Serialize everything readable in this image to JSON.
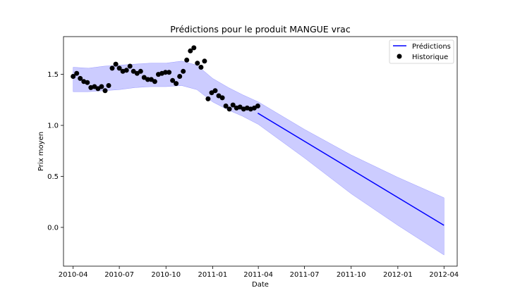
{
  "chart_data": {
    "type": "line",
    "title": "Prédictions pour le produit MANGUE vrac",
    "xlabel": "Date",
    "ylabel": "Prix moyen",
    "xlim": [
      "2010-03-13",
      "2012-04-27"
    ],
    "ylim": [
      -0.38,
      1.87
    ],
    "x_ticks": [
      {
        "date": "2010-04-01",
        "label": "2010-04"
      },
      {
        "date": "2010-07-01",
        "label": "2010-07"
      },
      {
        "date": "2010-10-01",
        "label": "2010-10"
      },
      {
        "date": "2011-01-01",
        "label": "2011-01"
      },
      {
        "date": "2011-04-01",
        "label": "2011-04"
      },
      {
        "date": "2011-07-01",
        "label": "2011-07"
      },
      {
        "date": "2011-10-01",
        "label": "2011-10"
      },
      {
        "date": "2012-01-01",
        "label": "2012-01"
      },
      {
        "date": "2012-04-01",
        "label": "2012-04"
      }
    ],
    "y_ticks": [
      {
        "value": 0.0,
        "label": "0.0"
      },
      {
        "value": 0.5,
        "label": "0.5"
      },
      {
        "value": 1.0,
        "label": "1.0"
      },
      {
        "value": 1.5,
        "label": "1.5"
      }
    ],
    "grid": false,
    "legend_position": "top-right",
    "colors": {
      "prediction": "#0000ff",
      "band": "#ccccff",
      "band_edge": "#9999ff",
      "history": "#000000"
    },
    "legend": [
      {
        "label": "Prédictions",
        "marker": "line"
      },
      {
        "label": "Historique",
        "marker": "dot"
      }
    ],
    "series": [
      {
        "type": "line",
        "x": [
          "2011-03-31",
          "2012-04-01"
        ],
        "y": [
          1.12,
          0.02
        ]
      },
      {
        "type": "scatter",
        "x": [
          "2010-04-01",
          "2010-04-08",
          "2010-04-15",
          "2010-04-22",
          "2010-04-29",
          "2010-05-06",
          "2010-05-13",
          "2010-05-20",
          "2010-05-27",
          "2010-06-03",
          "2010-06-10",
          "2010-06-17",
          "2010-06-24",
          "2010-07-01",
          "2010-07-08",
          "2010-07-15",
          "2010-07-22",
          "2010-07-29",
          "2010-08-05",
          "2010-08-12",
          "2010-08-19",
          "2010-08-26",
          "2010-09-02",
          "2010-09-09",
          "2010-09-16",
          "2010-09-23",
          "2010-09-30",
          "2010-10-07",
          "2010-10-14",
          "2010-10-21",
          "2010-10-28",
          "2010-11-04",
          "2010-11-11",
          "2010-11-18",
          "2010-11-25",
          "2010-12-02",
          "2010-12-09",
          "2010-12-16",
          "2010-12-23",
          "2010-12-30",
          "2011-01-06",
          "2011-01-13",
          "2011-01-20",
          "2011-01-27",
          "2011-02-03",
          "2011-02-10",
          "2011-02-17",
          "2011-02-24",
          "2011-03-03",
          "2011-03-10",
          "2011-03-17",
          "2011-03-24",
          "2011-03-31"
        ],
        "y": [
          1.48,
          1.51,
          1.46,
          1.43,
          1.42,
          1.37,
          1.38,
          1.36,
          1.38,
          1.34,
          1.39,
          1.56,
          1.6,
          1.56,
          1.53,
          1.54,
          1.58,
          1.53,
          1.51,
          1.53,
          1.47,
          1.45,
          1.45,
          1.43,
          1.5,
          1.51,
          1.52,
          1.52,
          1.44,
          1.41,
          1.48,
          1.53,
          1.64,
          1.73,
          1.76,
          1.61,
          1.57,
          1.63,
          1.26,
          1.32,
          1.34,
          1.29,
          1.27,
          1.19,
          1.16,
          1.2,
          1.17,
          1.18,
          1.16,
          1.17,
          1.16,
          1.17,
          1.19
        ]
      },
      {
        "type": "band",
        "x": [
          "2010-04-01",
          "2010-05-01",
          "2010-06-01",
          "2010-07-01",
          "2010-08-01",
          "2010-09-01",
          "2010-10-01",
          "2010-11-01",
          "2010-12-01",
          "2011-01-01",
          "2011-02-01",
          "2011-03-01",
          "2011-04-01",
          "2011-07-01",
          "2011-10-01",
          "2012-01-01",
          "2012-04-01"
        ],
        "upper": [
          1.57,
          1.56,
          1.58,
          1.59,
          1.6,
          1.61,
          1.61,
          1.63,
          1.59,
          1.46,
          1.37,
          1.3,
          1.23,
          0.96,
          0.71,
          0.49,
          0.29
        ],
        "lower": [
          1.33,
          1.33,
          1.34,
          1.35,
          1.37,
          1.38,
          1.38,
          1.39,
          1.35,
          1.23,
          1.15,
          1.09,
          1.01,
          0.68,
          0.33,
          0.02,
          -0.27
        ]
      }
    ]
  }
}
